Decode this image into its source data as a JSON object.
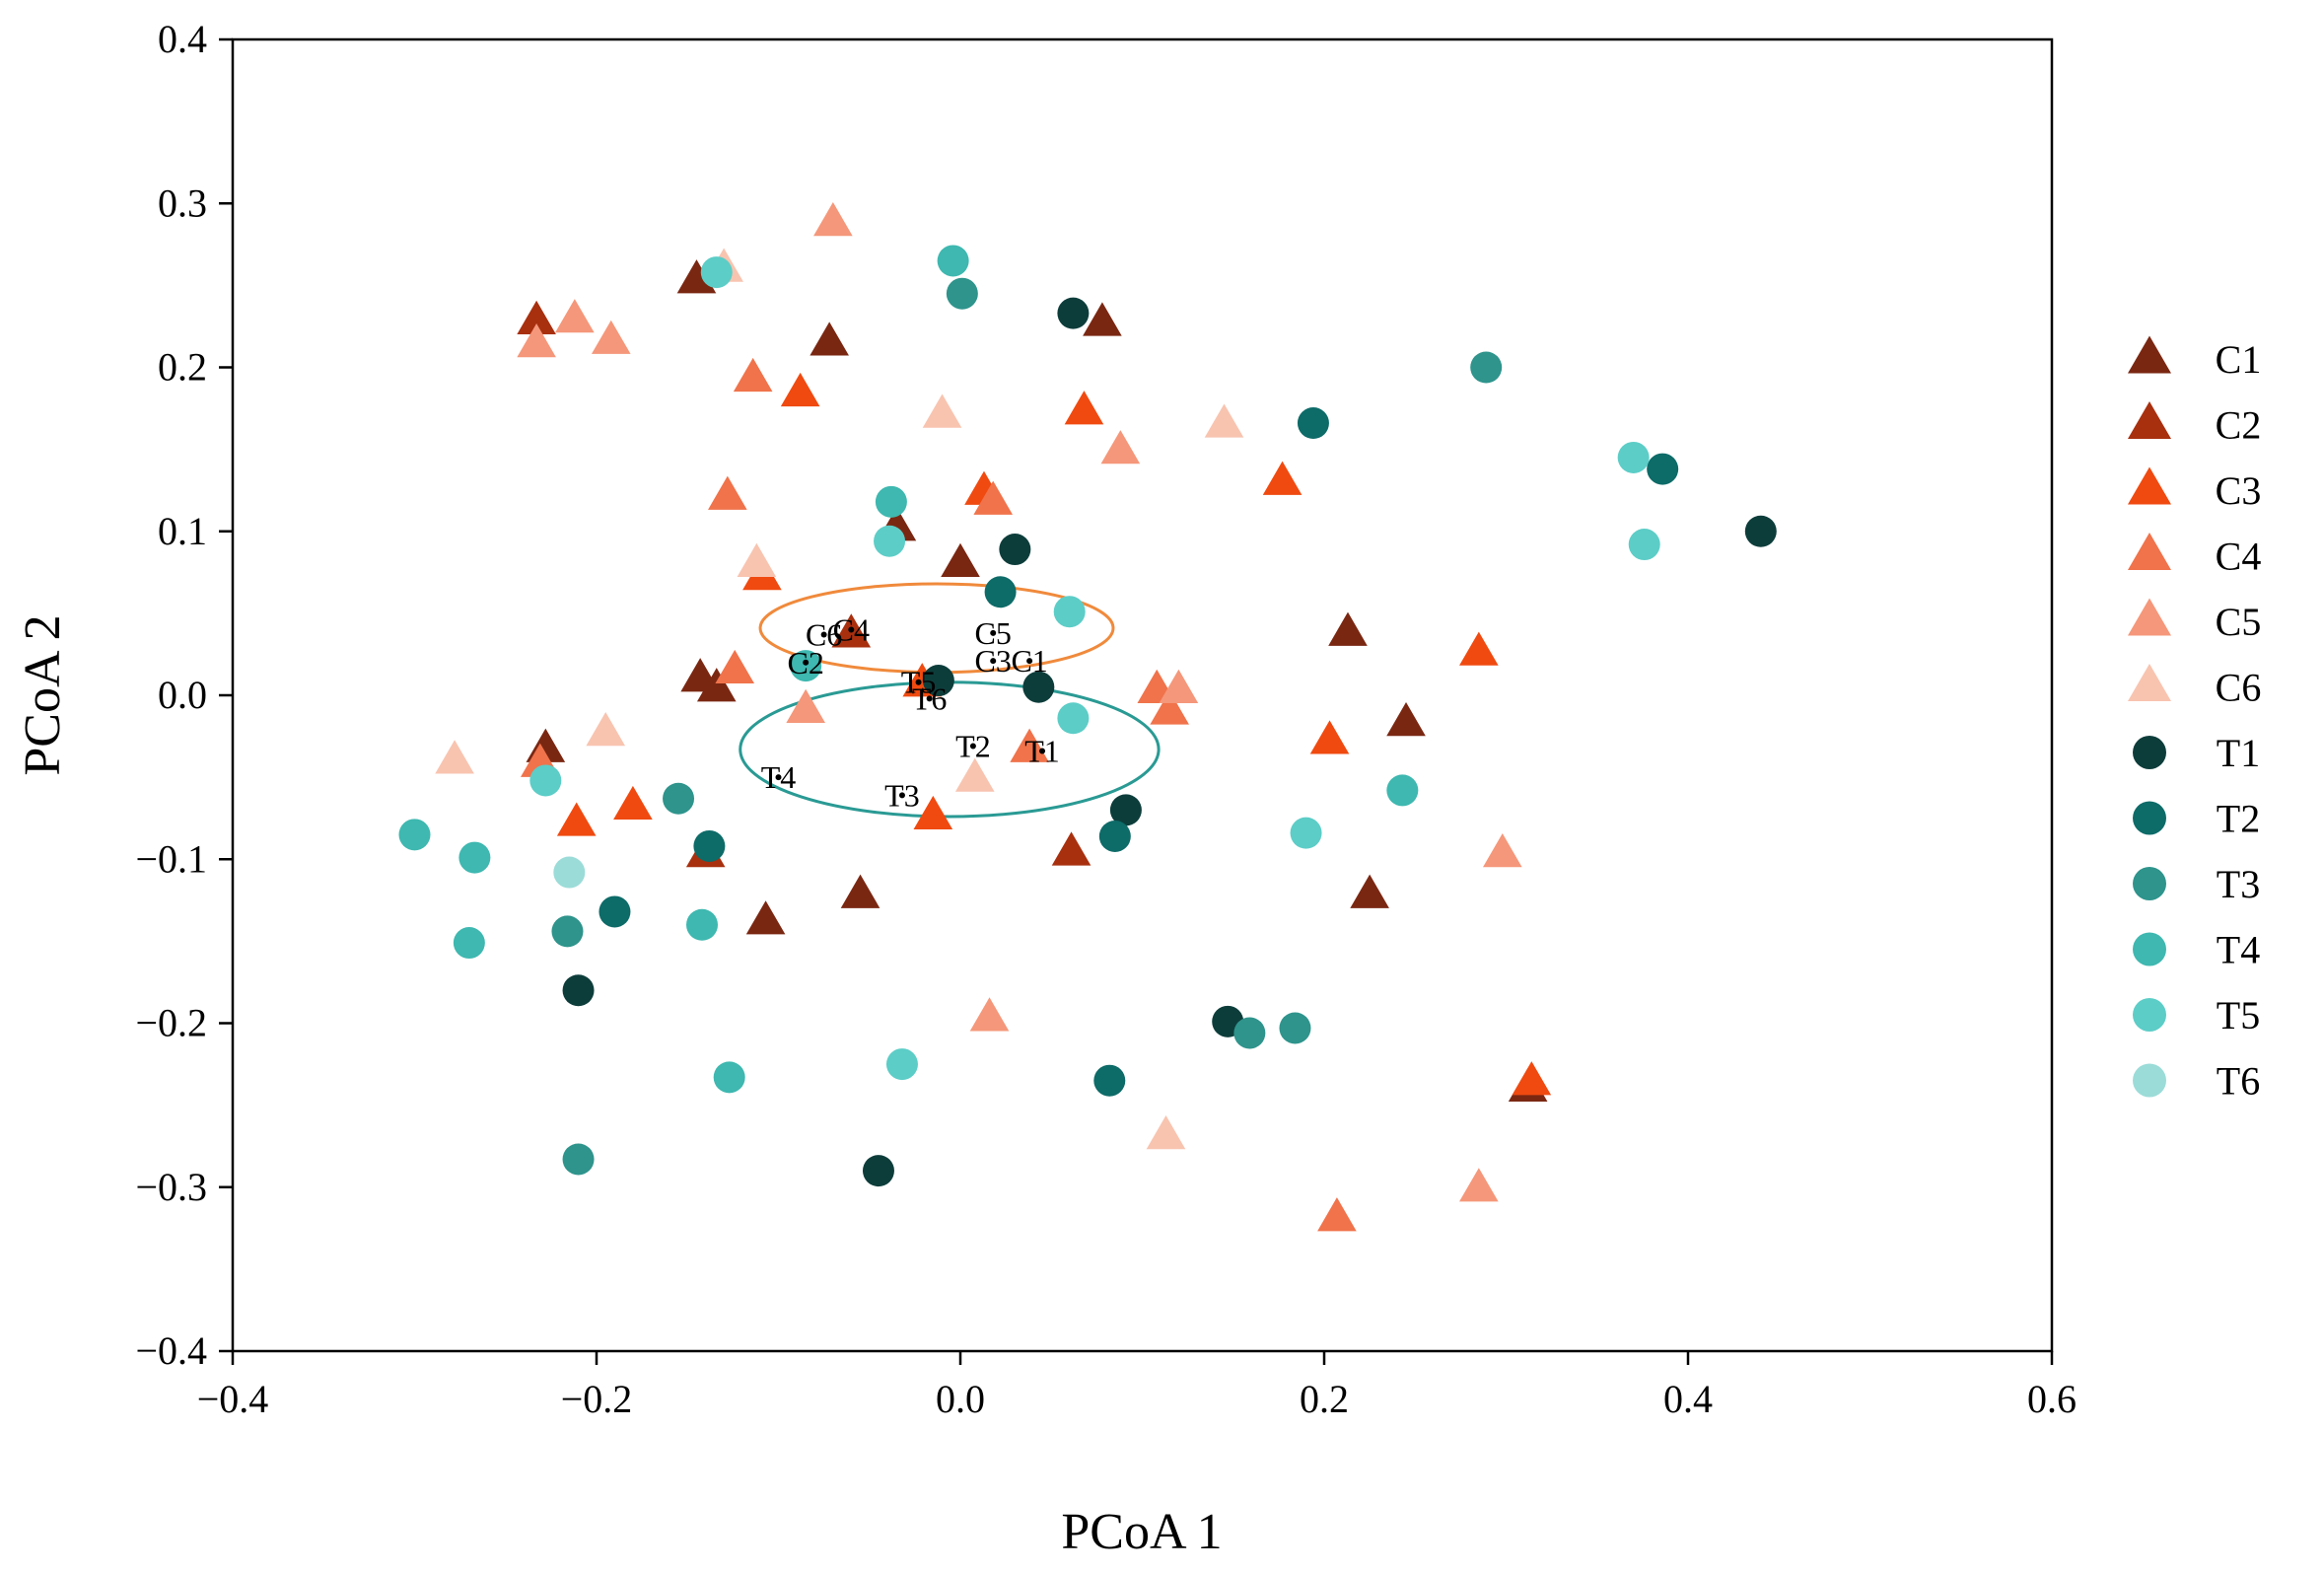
{
  "chart_data": {
    "type": "scatter",
    "title": "",
    "xlabel": "PCoA 1",
    "ylabel": "PCoA 2",
    "xlim": [
      -0.4,
      0.6
    ],
    "ylim": [
      -0.4,
      0.4
    ],
    "xticks": [
      -0.4,
      -0.2,
      0.0,
      0.2,
      0.4,
      0.6
    ],
    "yticks": [
      -0.4,
      -0.3,
      -0.2,
      -0.1,
      0.0,
      0.1,
      0.2,
      0.3,
      0.4
    ],
    "xtick_labels": [
      "−0.4",
      "−0.2",
      "0.0",
      "0.2",
      "0.4",
      "0.6"
    ],
    "ytick_labels": [
      "−0.4",
      "−0.3",
      "−0.2",
      "−0.1",
      "0.0",
      "0.1",
      "0.2",
      "0.3",
      "0.4"
    ],
    "grid": false,
    "legend_position": "right",
    "series": [
      {
        "name": "C1",
        "marker": "triangle",
        "color": "#7a2712",
        "x": [
          -0.145,
          -0.072,
          0.078,
          -0.035,
          0.0,
          0.213,
          -0.143,
          -0.134,
          -0.228,
          0.245,
          -0.055,
          0.225,
          -0.107,
          0.312
        ],
        "y": [
          0.253,
          0.215,
          0.227,
          0.102,
          0.08,
          0.038,
          0.01,
          0.004,
          -0.033,
          -0.017,
          -0.122,
          -0.122,
          -0.138,
          -0.24
        ]
      },
      {
        "name": "C2",
        "marker": "triangle",
        "color": "#a8300f",
        "x": [
          -0.233,
          -0.06,
          -0.14,
          0.061
        ],
        "y": [
          0.228,
          0.037,
          -0.097,
          -0.096
        ]
      },
      {
        "name": "C3",
        "marker": "triangle",
        "color": "#f04a10",
        "x": [
          -0.088,
          0.068,
          0.177,
          0.013,
          -0.109,
          0.285,
          -0.021,
          0.203,
          -0.211,
          -0.18,
          -0.015,
          0.314
        ],
        "y": [
          0.184,
          0.173,
          0.13,
          0.124,
          0.072,
          0.026,
          0.007,
          -0.028,
          -0.078,
          -0.068,
          -0.074,
          -0.236
        ]
      },
      {
        "name": "C4",
        "marker": "triangle",
        "color": "#f0734b",
        "x": [
          -0.114,
          -0.128,
          0.018,
          -0.124,
          0.108,
          0.115,
          -0.231,
          0.207,
          0.038
        ],
        "y": [
          0.193,
          0.121,
          0.118,
          0.015,
          0.003,
          -0.01,
          -0.042,
          -0.319,
          -0.033
        ]
      },
      {
        "name": "C5",
        "marker": "triangle",
        "color": "#f5977a",
        "x": [
          -0.07,
          -0.212,
          -0.192,
          -0.233,
          0.088,
          -0.085,
          0.12,
          0.298,
          0.016,
          0.285
        ],
        "y": [
          0.288,
          0.229,
          0.216,
          0.214,
          0.149,
          -0.009,
          0.003,
          -0.097,
          -0.197,
          -0.301
        ]
      },
      {
        "name": "C6",
        "marker": "triangle",
        "color": "#f8c4b0",
        "x": [
          -0.13,
          -0.01,
          0.145,
          -0.112,
          -0.195,
          -0.278,
          0.008,
          0.113
        ],
        "y": [
          0.26,
          0.171,
          0.165,
          0.08,
          -0.023,
          -0.04,
          -0.051,
          -0.269
        ]
      },
      {
        "name": "T1",
        "marker": "circle",
        "color": "#0d3d3b",
        "x": [
          0.062,
          0.03,
          0.44,
          -0.012,
          0.043,
          0.091,
          -0.21,
          0.147,
          -0.045
        ],
        "y": [
          0.233,
          0.089,
          0.1,
          0.009,
          0.005,
          -0.07,
          -0.18,
          -0.199,
          -0.29
        ]
      },
      {
        "name": "T2",
        "marker": "circle",
        "color": "#0d6b68",
        "x": [
          0.194,
          0.386,
          0.022,
          -0.138,
          0.085,
          -0.19,
          0.082
        ],
        "y": [
          0.166,
          0.138,
          0.063,
          -0.092,
          -0.086,
          -0.132,
          -0.235
        ]
      },
      {
        "name": "T3",
        "marker": "circle",
        "color": "#2e948c",
        "x": [
          0.001,
          0.289,
          -0.155,
          -0.216,
          0.159,
          0.184,
          -0.21
        ],
        "y": [
          0.245,
          0.2,
          -0.063,
          -0.144,
          -0.206,
          -0.203,
          -0.283
        ]
      },
      {
        "name": "T4",
        "marker": "circle",
        "color": "#3eb8b0",
        "x": [
          -0.004,
          -0.038,
          -0.3,
          -0.267,
          -0.27,
          -0.142,
          -0.127,
          0.243,
          -0.085
        ],
        "y": [
          0.265,
          0.118,
          -0.085,
          -0.099,
          -0.151,
          -0.14,
          -0.233,
          -0.058,
          0.018
        ]
      },
      {
        "name": "T5",
        "marker": "circle",
        "color": "#5ccdc7",
        "x": [
          -0.134,
          0.37,
          -0.039,
          0.06,
          0.376,
          0.062,
          -0.228,
          -0.032,
          0.19
        ],
        "y": [
          0.258,
          0.145,
          0.094,
          0.051,
          0.092,
          -0.014,
          -0.052,
          -0.225,
          -0.084
        ]
      },
      {
        "name": "T6",
        "marker": "circle",
        "color": "#9bdcd8",
        "x": [
          -0.215
        ],
        "y": [
          -0.108
        ]
      }
    ],
    "centroids": [
      {
        "label": "C1",
        "x": 0.038,
        "y": 0.021
      },
      {
        "label": "C2",
        "x": -0.085,
        "y": 0.02
      },
      {
        "label": "C3",
        "x": 0.018,
        "y": 0.021
      },
      {
        "label": "C4",
        "x": -0.06,
        "y": 0.04
      },
      {
        "label": "C5",
        "x": 0.018,
        "y": 0.038
      },
      {
        "label": "C6",
        "x": -0.075,
        "y": 0.037
      },
      {
        "label": "T1",
        "x": 0.045,
        "y": -0.034
      },
      {
        "label": "T2",
        "x": 0.007,
        "y": -0.031
      },
      {
        "label": "T3",
        "x": -0.032,
        "y": -0.061
      },
      {
        "label": "T4",
        "x": -0.1,
        "y": -0.05
      },
      {
        "label": "T5",
        "x": -0.023,
        "y": 0.008
      },
      {
        "label": "T6",
        "x": -0.017,
        "y": -0.002
      }
    ],
    "ellipses": [
      {
        "group": "C",
        "color": "#f08a3c",
        "cx": -0.013,
        "cy": 0.041,
        "rx": 0.097,
        "ry": 0.027
      },
      {
        "group": "T",
        "color": "#2a9a94",
        "cx": -0.006,
        "cy": -0.033,
        "rx": 0.115,
        "ry": 0.041
      }
    ]
  }
}
